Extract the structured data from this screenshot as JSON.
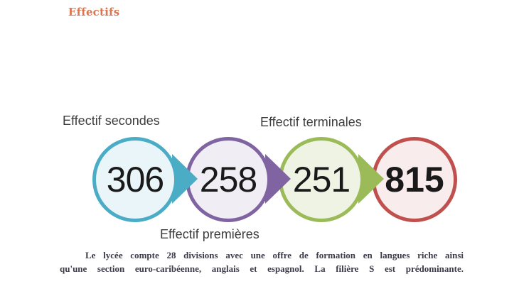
{
  "heading": {
    "text": "Effectifs",
    "color": "#dc7650"
  },
  "diagram": {
    "labels": [
      {
        "text": "Effectif secondes"
      },
      {
        "text": "Effectif terminales"
      },
      {
        "text": "Effectif premières"
      }
    ],
    "nodes": [
      {
        "value": "306",
        "border": "#4bacc6",
        "fill": "#eaf5f9",
        "bold": false
      },
      {
        "value": "258",
        "border": "#8064a2",
        "fill": "#f0edf5",
        "bold": false
      },
      {
        "value": "251",
        "border": "#9bbb59",
        "fill": "#eff3e3",
        "bold": false
      },
      {
        "value": "815",
        "border": "#c0504d",
        "fill": "#f9ecec",
        "bold": true
      }
    ]
  },
  "paragraph": {
    "color": "#3b3b4a",
    "lines": [
      "Le lycée compte 28 divisions avec une offre de formation en langues riche ainsi",
      "qu'une  section euro-caribéenne, anglais et espagnol. La filière S est prédominante."
    ]
  }
}
